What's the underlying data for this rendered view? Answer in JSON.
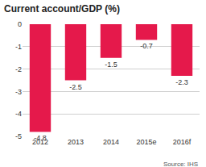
{
  "chart_data": {
    "type": "bar",
    "title": "Current account/GDP (%)",
    "categories": [
      "2012",
      "2013",
      "2014",
      "2015e",
      "2016f"
    ],
    "values": [
      -4.8,
      -2.5,
      -1.5,
      -0.7,
      -2.3
    ],
    "color": "#e5194b",
    "ylim": [
      -5,
      0
    ],
    "yticks": [
      -5,
      -4,
      -3,
      -2,
      -1,
      0
    ],
    "grid": true,
    "data_labels": true,
    "annotations": [
      "Source: IHS"
    ]
  }
}
